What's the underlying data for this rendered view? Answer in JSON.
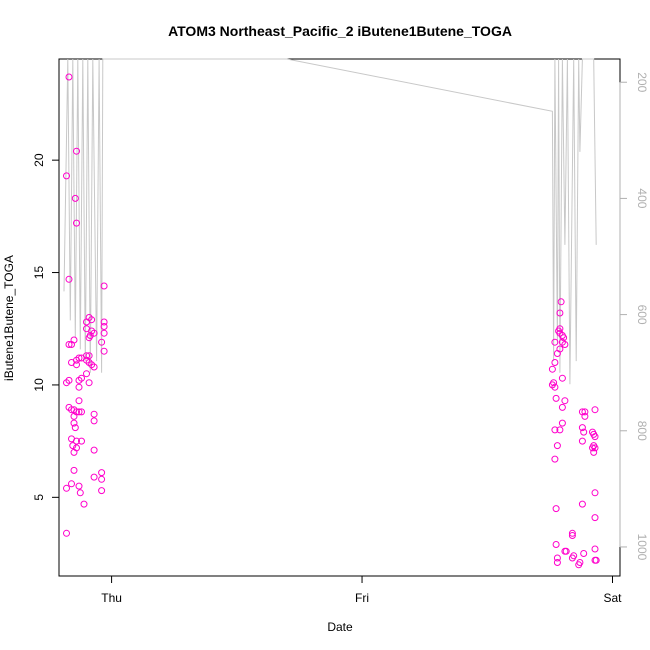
{
  "chart_data": {
    "type": "scatter",
    "title": "ATOM3 Northeast_Pacific_2 iButene1Butene_TOGA",
    "xlabel": "Date",
    "ylabel": "iButene1Butene_TOGA",
    "x_ticks": [
      "Thu",
      "Fri",
      "Sat"
    ],
    "y_ticks": [
      "5",
      "10",
      "15",
      "20"
    ],
    "right_axis_ticks": [
      "200",
      "400",
      "600",
      "800",
      "1000"
    ],
    "right_axis_reversed": true,
    "xlim_days": [
      -0.21,
      2.03
    ],
    "ylim": [
      1.5,
      24.5
    ],
    "right_axis_range": [
      1050,
      160
    ],
    "grid": false,
    "colors": {
      "points": "#ff00cc",
      "pressure_line": "#c8c8c8",
      "right_axis": "#b0b0b0"
    },
    "series": [
      {
        "marker": "circle",
        "points": [
          [
            -0.17,
            23.7
          ],
          [
            -0.18,
            19.3
          ],
          [
            -0.17,
            14.7
          ],
          [
            -0.17,
            11.8
          ],
          [
            -0.16,
            11.8
          ],
          [
            -0.15,
            12.0
          ],
          [
            -0.14,
            20.4
          ],
          [
            -0.145,
            18.3
          ],
          [
            -0.14,
            17.2
          ],
          [
            -0.18,
            10.1
          ],
          [
            -0.17,
            10.2
          ],
          [
            -0.16,
            11.0
          ],
          [
            -0.14,
            11.1
          ],
          [
            -0.13,
            11.2
          ],
          [
            -0.12,
            11.2
          ],
          [
            -0.14,
            10.9
          ],
          [
            -0.13,
            10.2
          ],
          [
            -0.12,
            10.3
          ],
          [
            -0.13,
            9.9
          ],
          [
            -0.13,
            9.3
          ],
          [
            -0.17,
            9.0
          ],
          [
            -0.16,
            8.9
          ],
          [
            -0.15,
            8.9
          ],
          [
            -0.15,
            8.6
          ],
          [
            -0.14,
            8.8
          ],
          [
            -0.13,
            8.8
          ],
          [
            -0.12,
            8.8
          ],
          [
            -0.15,
            8.3
          ],
          [
            -0.145,
            8.1
          ],
          [
            -0.14,
            7.5
          ],
          [
            -0.12,
            7.5
          ],
          [
            -0.16,
            7.6
          ],
          [
            -0.155,
            7.3
          ],
          [
            -0.15,
            7.0
          ],
          [
            -0.14,
            7.2
          ],
          [
            -0.15,
            6.2
          ],
          [
            -0.16,
            5.6
          ],
          [
            -0.18,
            5.4
          ],
          [
            -0.13,
            5.5
          ],
          [
            -0.125,
            5.2
          ],
          [
            -0.11,
            4.7
          ],
          [
            -0.18,
            3.4
          ],
          [
            -0.1,
            12.8
          ],
          [
            -0.09,
            13.0
          ],
          [
            -0.08,
            12.9
          ],
          [
            -0.1,
            12.5
          ],
          [
            -0.08,
            12.4
          ],
          [
            -0.09,
            12.1
          ],
          [
            -0.07,
            12.3
          ],
          [
            -0.085,
            12.2
          ],
          [
            -0.1,
            11.3
          ],
          [
            -0.09,
            11.3
          ],
          [
            -0.1,
            11.1
          ],
          [
            -0.09,
            11.0
          ],
          [
            -0.08,
            10.9
          ],
          [
            -0.07,
            10.8
          ],
          [
            -0.1,
            10.5
          ],
          [
            -0.09,
            10.1
          ],
          [
            -0.07,
            8.7
          ],
          [
            -0.07,
            8.4
          ],
          [
            -0.07,
            7.1
          ],
          [
            -0.07,
            5.9
          ],
          [
            -0.03,
            14.4
          ],
          [
            -0.03,
            12.8
          ],
          [
            -0.03,
            12.6
          ],
          [
            -0.03,
            12.3
          ],
          [
            -0.04,
            11.9
          ],
          [
            -0.03,
            11.5
          ],
          [
            -0.04,
            6.1
          ],
          [
            -0.04,
            5.8
          ],
          [
            -0.04,
            5.3
          ],
          [
            1.77,
            11.9
          ],
          [
            1.785,
            12.4
          ],
          [
            1.79,
            12.5
          ],
          [
            1.79,
            12.3
          ],
          [
            1.8,
            12.2
          ],
          [
            1.805,
            12.1
          ],
          [
            1.81,
            11.8
          ],
          [
            1.8,
            11.9
          ],
          [
            1.79,
            11.6
          ],
          [
            1.78,
            11.4
          ],
          [
            1.795,
            13.7
          ],
          [
            1.79,
            13.2
          ],
          [
            1.77,
            11.0
          ],
          [
            1.76,
            10.7
          ],
          [
            1.765,
            10.1
          ],
          [
            1.76,
            10.0
          ],
          [
            1.77,
            9.9
          ],
          [
            1.8,
            10.3
          ],
          [
            1.775,
            9.4
          ],
          [
            1.81,
            9.3
          ],
          [
            1.8,
            9.0
          ],
          [
            1.79,
            8.0
          ],
          [
            1.77,
            8.0
          ],
          [
            1.8,
            8.3
          ],
          [
            1.78,
            7.3
          ],
          [
            1.77,
            6.7
          ],
          [
            1.775,
            4.5
          ],
          [
            1.775,
            2.9
          ],
          [
            1.78,
            2.3
          ],
          [
            1.78,
            2.1
          ],
          [
            1.81,
            2.6
          ],
          [
            1.815,
            2.6
          ],
          [
            1.84,
            3.4
          ],
          [
            1.84,
            3.3
          ],
          [
            1.84,
            2.3
          ],
          [
            1.845,
            2.4
          ],
          [
            1.88,
            8.8
          ],
          [
            1.89,
            8.8
          ],
          [
            1.88,
            8.1
          ],
          [
            1.885,
            7.9
          ],
          [
            1.88,
            7.5
          ],
          [
            1.89,
            8.6
          ],
          [
            1.88,
            4.7
          ],
          [
            1.885,
            2.5
          ],
          [
            1.87,
            2.1
          ],
          [
            1.865,
            2.0
          ],
          [
            1.93,
            8.9
          ],
          [
            1.92,
            7.9
          ],
          [
            1.925,
            7.8
          ],
          [
            1.93,
            7.7
          ],
          [
            1.925,
            7.3
          ],
          [
            1.93,
            7.2
          ],
          [
            1.92,
            7.2
          ],
          [
            1.925,
            7.0
          ],
          [
            1.93,
            5.2
          ],
          [
            1.93,
            4.1
          ],
          [
            1.93,
            2.7
          ],
          [
            1.93,
            2.2
          ],
          [
            1.935,
            2.2
          ]
        ]
      },
      {
        "axis": "right",
        "line_points": [
          [
            -0.19,
            560
          ],
          [
            -0.175,
            60
          ],
          [
            -0.165,
            610
          ],
          [
            -0.155,
            60
          ],
          [
            -0.145,
            640
          ],
          [
            -0.135,
            60
          ],
          [
            -0.125,
            660
          ],
          [
            -0.115,
            60
          ],
          [
            -0.105,
            680
          ],
          [
            -0.095,
            60
          ],
          [
            -0.085,
            700
          ],
          [
            -0.075,
            60
          ],
          [
            -0.06,
            680
          ],
          [
            -0.05,
            100
          ],
          [
            -0.04,
            700
          ],
          [
            -0.035,
            60
          ],
          [
            -0.03,
            160
          ],
          [
            0.7,
            160
          ],
          [
            1.76,
            250
          ],
          [
            1.765,
            680
          ],
          [
            1.77,
            60
          ],
          [
            1.78,
            650
          ],
          [
            1.785,
            80
          ],
          [
            1.79,
            700
          ],
          [
            1.8,
            60
          ],
          [
            1.81,
            480
          ],
          [
            1.82,
            60
          ],
          [
            1.83,
            720
          ],
          [
            1.845,
            60
          ],
          [
            1.855,
            680
          ],
          [
            1.865,
            60
          ],
          [
            1.87,
            320
          ],
          [
            1.88,
            100
          ],
          [
            1.89,
            60
          ],
          [
            1.9,
            60
          ],
          [
            1.91,
            60
          ],
          [
            1.925,
            60
          ],
          [
            1.935,
            480
          ]
        ]
      }
    ]
  }
}
